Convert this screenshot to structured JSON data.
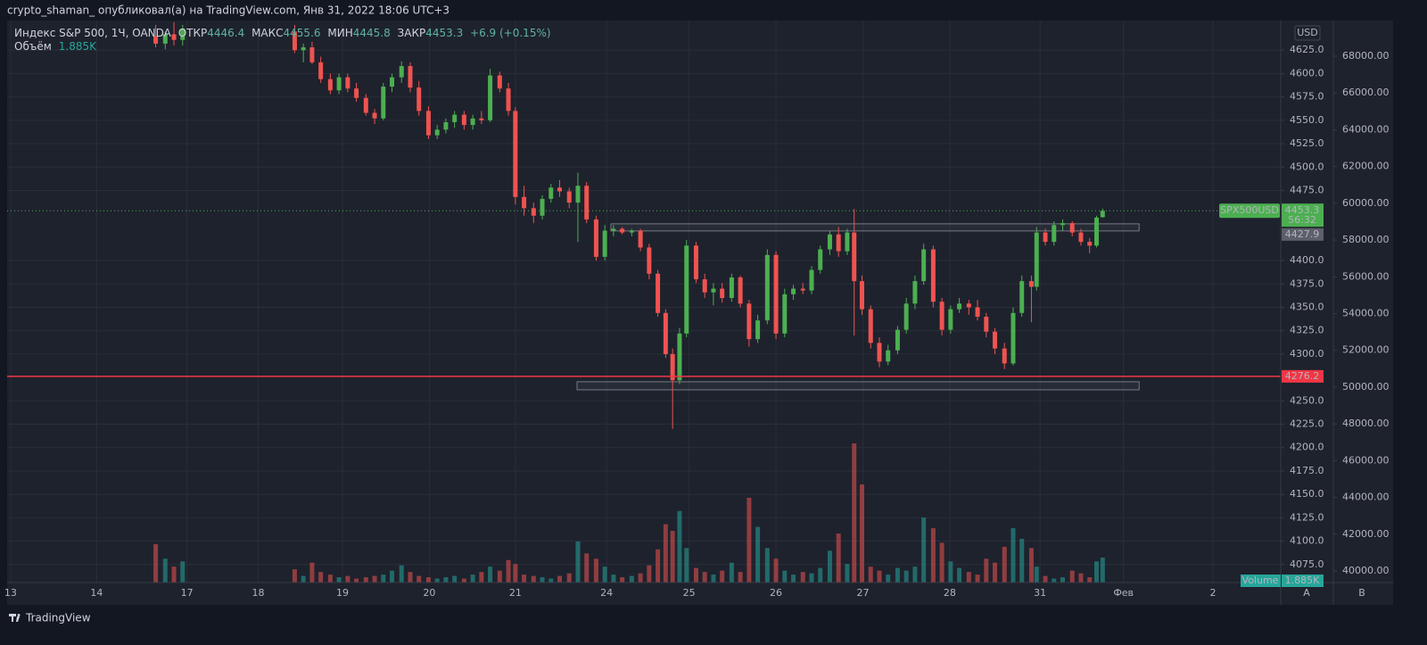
{
  "header": {
    "publisher": "crypto_shaman_ опубликовал(а) на TradingView.com, Янв 31, 2022 18:06 UTC+3"
  },
  "footer": {
    "brand": "TradingView"
  },
  "chart_data": {
    "type": "candlestick",
    "legend": {
      "symbol": "Индекс S&P 500, 1Ч, OANDA",
      "open_label": "ОТКР",
      "high_label": "МАКС",
      "low_label": "МИН",
      "close_label": "ЗАКР",
      "change": "+6.9 (+0.15%)",
      "volume_label": "Объём",
      "volume_value": "1.885K",
      "volume_name": "Volume"
    },
    "up_color": "#4caf50",
    "down_color": "#ef5350",
    "volume_up_color": "#26a69a",
    "volume_down_color": "#ef5350",
    "x": [
      1.69,
      1.8,
      1.9,
      2.0,
      3.29,
      3.39,
      3.49,
      3.59,
      3.7,
      3.8,
      3.9,
      4.0,
      4.11,
      4.21,
      4.31,
      4.41,
      4.52,
      4.62,
      4.72,
      4.83,
      4.93,
      5.03,
      5.13,
      5.24,
      5.34,
      5.44,
      5.54,
      5.65,
      5.75,
      5.83,
      5.93,
      6.04,
      6.14,
      6.24,
      6.34,
      6.45,
      6.55,
      6.65,
      6.76,
      6.86,
      6.96,
      7.06,
      7.17,
      7.27,
      7.37,
      7.47,
      7.56,
      7.64,
      7.72,
      7.8,
      7.91,
      8.01,
      8.11,
      8.21,
      8.32,
      8.42,
      8.52,
      8.62,
      8.73,
      8.83,
      8.93,
      9.03,
      9.14,
      9.24,
      9.34,
      9.45,
      9.55,
      9.65,
      9.73,
      9.82,
      9.92,
      10.02,
      10.12,
      10.23,
      10.33,
      10.43,
      10.53,
      10.64,
      10.74,
      10.84,
      10.94,
      11.05,
      11.15,
      11.25,
      11.35,
      11.46,
      11.56,
      11.66,
      11.77,
      11.83,
      11.93,
      12.03,
      12.13,
      12.24,
      12.34,
      12.44,
      12.52,
      12.59
    ],
    "open": [
      4640,
      4632,
      4642,
      4636,
      4645,
      4625,
      4628,
      4612,
      4594,
      4582,
      4596,
      4584,
      4574,
      4558,
      4552,
      4586,
      4596,
      4608,
      4585,
      4560,
      4534,
      4540,
      4548,
      4556,
      4545,
      4552,
      4550,
      4598,
      4584,
      4560,
      4468,
      4456,
      4448,
      4466,
      4478,
      4474,
      4462,
      4480,
      4444,
      4404,
      4432,
      4434,
      4430,
      4432,
      4414,
      4386,
      4344,
      4300,
      4272,
      4322,
      4416,
      4380,
      4366,
      4370,
      4360,
      4382,
      4354,
      4316,
      4336,
      4406,
      4322,
      4364,
      4370,
      4368,
      4390,
      4412,
      4428,
      4410,
      4430,
      4378,
      4348,
      4312,
      4292,
      4304,
      4326,
      4354,
      4378,
      4412,
      4356,
      4326,
      4348,
      4354,
      4350,
      4340,
      4324,
      4306,
      4290,
      4344,
      4378,
      4372,
      4430,
      4420,
      4438,
      4440,
      4430,
      4420,
      4416,
      4446.4
    ],
    "high": [
      4652,
      4645,
      4655,
      4652,
      4652,
      4632,
      4634,
      4618,
      4600,
      4600,
      4600,
      4590,
      4578,
      4562,
      4590,
      4600,
      4613,
      4612,
      4592,
      4565,
      4545,
      4552,
      4560,
      4560,
      4556,
      4560,
      4605,
      4602,
      4590,
      4564,
      4480,
      4462,
      4470,
      4482,
      4486,
      4478,
      4494,
      4484,
      4448,
      4438,
      4438,
      4436,
      4434,
      4434,
      4418,
      4390,
      4348,
      4306,
      4328,
      4422,
      4420,
      4386,
      4376,
      4376,
      4386,
      4384,
      4358,
      4342,
      4412,
      4410,
      4370,
      4374,
      4376,
      4394,
      4416,
      4432,
      4436,
      4434,
      4455,
      4384,
      4352,
      4318,
      4310,
      4330,
      4360,
      4384,
      4418,
      4416,
      4360,
      4352,
      4360,
      4358,
      4358,
      4344,
      4328,
      4312,
      4350,
      4384,
      4384,
      4436,
      4434,
      4442,
      4444,
      4442,
      4434,
      4424,
      4448,
      4455.6
    ],
    "low": [
      4628,
      4626,
      4630,
      4630,
      4622,
      4612,
      4610,
      4590,
      4578,
      4578,
      4580,
      4570,
      4555,
      4546,
      4550,
      4580,
      4590,
      4580,
      4555,
      4530,
      4530,
      4536,
      4542,
      4540,
      4540,
      4546,
      4548,
      4580,
      4555,
      4460,
      4448,
      4440,
      4444,
      4462,
      4468,
      4456,
      4420,
      4440,
      4400,
      4400,
      4426,
      4428,
      4426,
      4410,
      4380,
      4340,
      4296,
      4220,
      4268,
      4318,
      4376,
      4360,
      4352,
      4355,
      4356,
      4350,
      4308,
      4312,
      4332,
      4316,
      4318,
      4358,
      4364,
      4364,
      4386,
      4406,
      4404,
      4406,
      4320,
      4342,
      4306,
      4286,
      4288,
      4300,
      4322,
      4348,
      4374,
      4350,
      4320,
      4322,
      4344,
      4342,
      4336,
      4318,
      4300,
      4284,
      4288,
      4340,
      4334,
      4368,
      4416,
      4416,
      4432,
      4426,
      4416,
      4408,
      4414,
      4445.8
    ],
    "close": [
      4632,
      4642,
      4636,
      4648,
      4625,
      4628,
      4612,
      4594,
      4582,
      4596,
      4584,
      4574,
      4558,
      4552,
      4586,
      4596,
      4608,
      4585,
      4560,
      4534,
      4540,
      4548,
      4556,
      4545,
      4552,
      4550,
      4598,
      4584,
      4560,
      4468,
      4456,
      4448,
      4466,
      4478,
      4474,
      4462,
      4480,
      4444,
      4404,
      4432,
      4434,
      4430,
      4432,
      4414,
      4386,
      4344,
      4300,
      4272,
      4322,
      4416,
      4380,
      4366,
      4370,
      4360,
      4382,
      4354,
      4316,
      4336,
      4406,
      4322,
      4364,
      4370,
      4368,
      4390,
      4412,
      4428,
      4410,
      4430,
      4378,
      4348,
      4312,
      4292,
      4304,
      4326,
      4354,
      4378,
      4412,
      4356,
      4326,
      4348,
      4354,
      4350,
      4340,
      4324,
      4306,
      4290,
      4344,
      4378,
      4372,
      4430,
      4420,
      4438,
      4440,
      4430,
      4420,
      4416,
      4446,
      4453.3
    ],
    "volume": [
      2.9,
      1.8,
      1.2,
      1.6,
      1.0,
      0.5,
      1.5,
      0.8,
      0.6,
      0.4,
      0.5,
      0.3,
      0.4,
      0.5,
      0.6,
      0.9,
      1.3,
      0.8,
      0.5,
      0.4,
      0.3,
      0.4,
      0.5,
      0.3,
      0.6,
      0.8,
      1.2,
      0.9,
      1.7,
      1.4,
      0.6,
      0.5,
      0.4,
      0.3,
      0.5,
      0.7,
      3.1,
      2.2,
      1.8,
      1.2,
      0.6,
      0.4,
      0.5,
      0.7,
      1.3,
      2.5,
      4.4,
      3.9,
      5.4,
      2.6,
      1.1,
      0.8,
      0.6,
      0.9,
      1.5,
      0.8,
      6.4,
      4.2,
      2.6,
      1.8,
      0.9,
      0.6,
      0.8,
      0.7,
      1.1,
      2.4,
      3.7,
      1.4,
      10.5,
      7.4,
      1.2,
      0.9,
      0.6,
      1.1,
      0.9,
      1.2,
      4.9,
      4.1,
      3.0,
      1.6,
      1.1,
      0.8,
      0.6,
      1.8,
      1.5,
      2.7,
      4.1,
      3.3,
      2.6,
      1.2,
      0.5,
      0.3,
      0.4,
      0.9,
      0.7,
      0.4,
      1.6,
      1.885
    ],
    "xlim": [
      -0.02,
      14.64
    ],
    "ylim": [
      4055.7,
      4656.7
    ],
    "y2lim": [
      39369,
      69942
    ],
    "xticks": [
      {
        "value": 0.02,
        "label": "13"
      },
      {
        "value": 1.01,
        "label": "14"
      },
      {
        "value": 2.05,
        "label": "17"
      },
      {
        "value": 2.87,
        "label": "18"
      },
      {
        "value": 3.84,
        "label": "19"
      },
      {
        "value": 4.84,
        "label": "20"
      },
      {
        "value": 5.83,
        "label": "21"
      },
      {
        "value": 6.88,
        "label": "24"
      },
      {
        "value": 7.83,
        "label": "25"
      },
      {
        "value": 8.83,
        "label": "26"
      },
      {
        "value": 9.83,
        "label": "27"
      },
      {
        "value": 10.83,
        "label": "28"
      },
      {
        "value": 11.87,
        "label": "31"
      },
      {
        "value": 12.83,
        "label": "Фев"
      },
      {
        "value": 13.86,
        "label": "2"
      }
    ],
    "yticks": [
      {
        "value": 4075,
        "label": "4075.0"
      },
      {
        "value": 4100,
        "label": "4100.0"
      },
      {
        "value": 4125,
        "label": "4125.0"
      },
      {
        "value": 4150,
        "label": "4150.0"
      },
      {
        "value": 4175,
        "label": "4175.0"
      },
      {
        "value": 4200,
        "label": "4200.0"
      },
      {
        "value": 4225,
        "label": "4225.0"
      },
      {
        "value": 4250,
        "label": "4250.0"
      },
      {
        "value": 4300,
        "label": "4300.0"
      },
      {
        "value": 4325,
        "label": "4325.0"
      },
      {
        "value": 4350,
        "label": "4350.0"
      },
      {
        "value": 4375,
        "label": "4375.0"
      },
      {
        "value": 4400,
        "label": "4400.0"
      },
      {
        "value": 4475,
        "label": "4475.0"
      },
      {
        "value": 4500,
        "label": "4500.0"
      },
      {
        "value": 4525,
        "label": "4525.0"
      },
      {
        "value": 4550,
        "label": "4550.0"
      },
      {
        "value": 4575,
        "label": "4575.0"
      },
      {
        "value": 4600,
        "label": "4600.0"
      },
      {
        "value": 4625,
        "label": "4625.0"
      }
    ],
    "y2ticks": [
      {
        "value": 40000,
        "label": "40000.00"
      },
      {
        "value": 42000,
        "label": "42000.00"
      },
      {
        "value": 44000,
        "label": "44000.00"
      },
      {
        "value": 46000,
        "label": "46000.00"
      },
      {
        "value": 48000,
        "label": "48000.00"
      },
      {
        "value": 50000,
        "label": "50000.00"
      },
      {
        "value": 52000,
        "label": "52000.00"
      },
      {
        "value": 54000,
        "label": "54000.00"
      },
      {
        "value": 56000,
        "label": "56000.00"
      },
      {
        "value": 58000,
        "label": "58000.00"
      },
      {
        "value": 60000,
        "label": "60000.00"
      },
      {
        "value": 62000,
        "label": "62000.00"
      },
      {
        "value": 64000,
        "label": "64000.00"
      },
      {
        "value": 66000,
        "label": "66000.00"
      },
      {
        "value": 68000,
        "label": "68000.00"
      }
    ],
    "grid": true,
    "currency": "USD",
    "scale_labels": [
      "A",
      "B"
    ],
    "last_price": {
      "name": "SPX500USD",
      "countdown": "56:32",
      "color": "#4caf50"
    },
    "price_marker": {
      "value": 4427.9,
      "color": "#5d606b"
    },
    "hline": {
      "value": 4276.2,
      "color": "#f23645"
    },
    "zones": [
      {
        "x": [
          6.93,
          13.01
        ],
        "y": [
          4431.7,
          4439.3
        ]
      },
      {
        "x": [
          6.54,
          13.01
        ],
        "y": [
          4261.8,
          4270.4
        ]
      }
    ]
  }
}
